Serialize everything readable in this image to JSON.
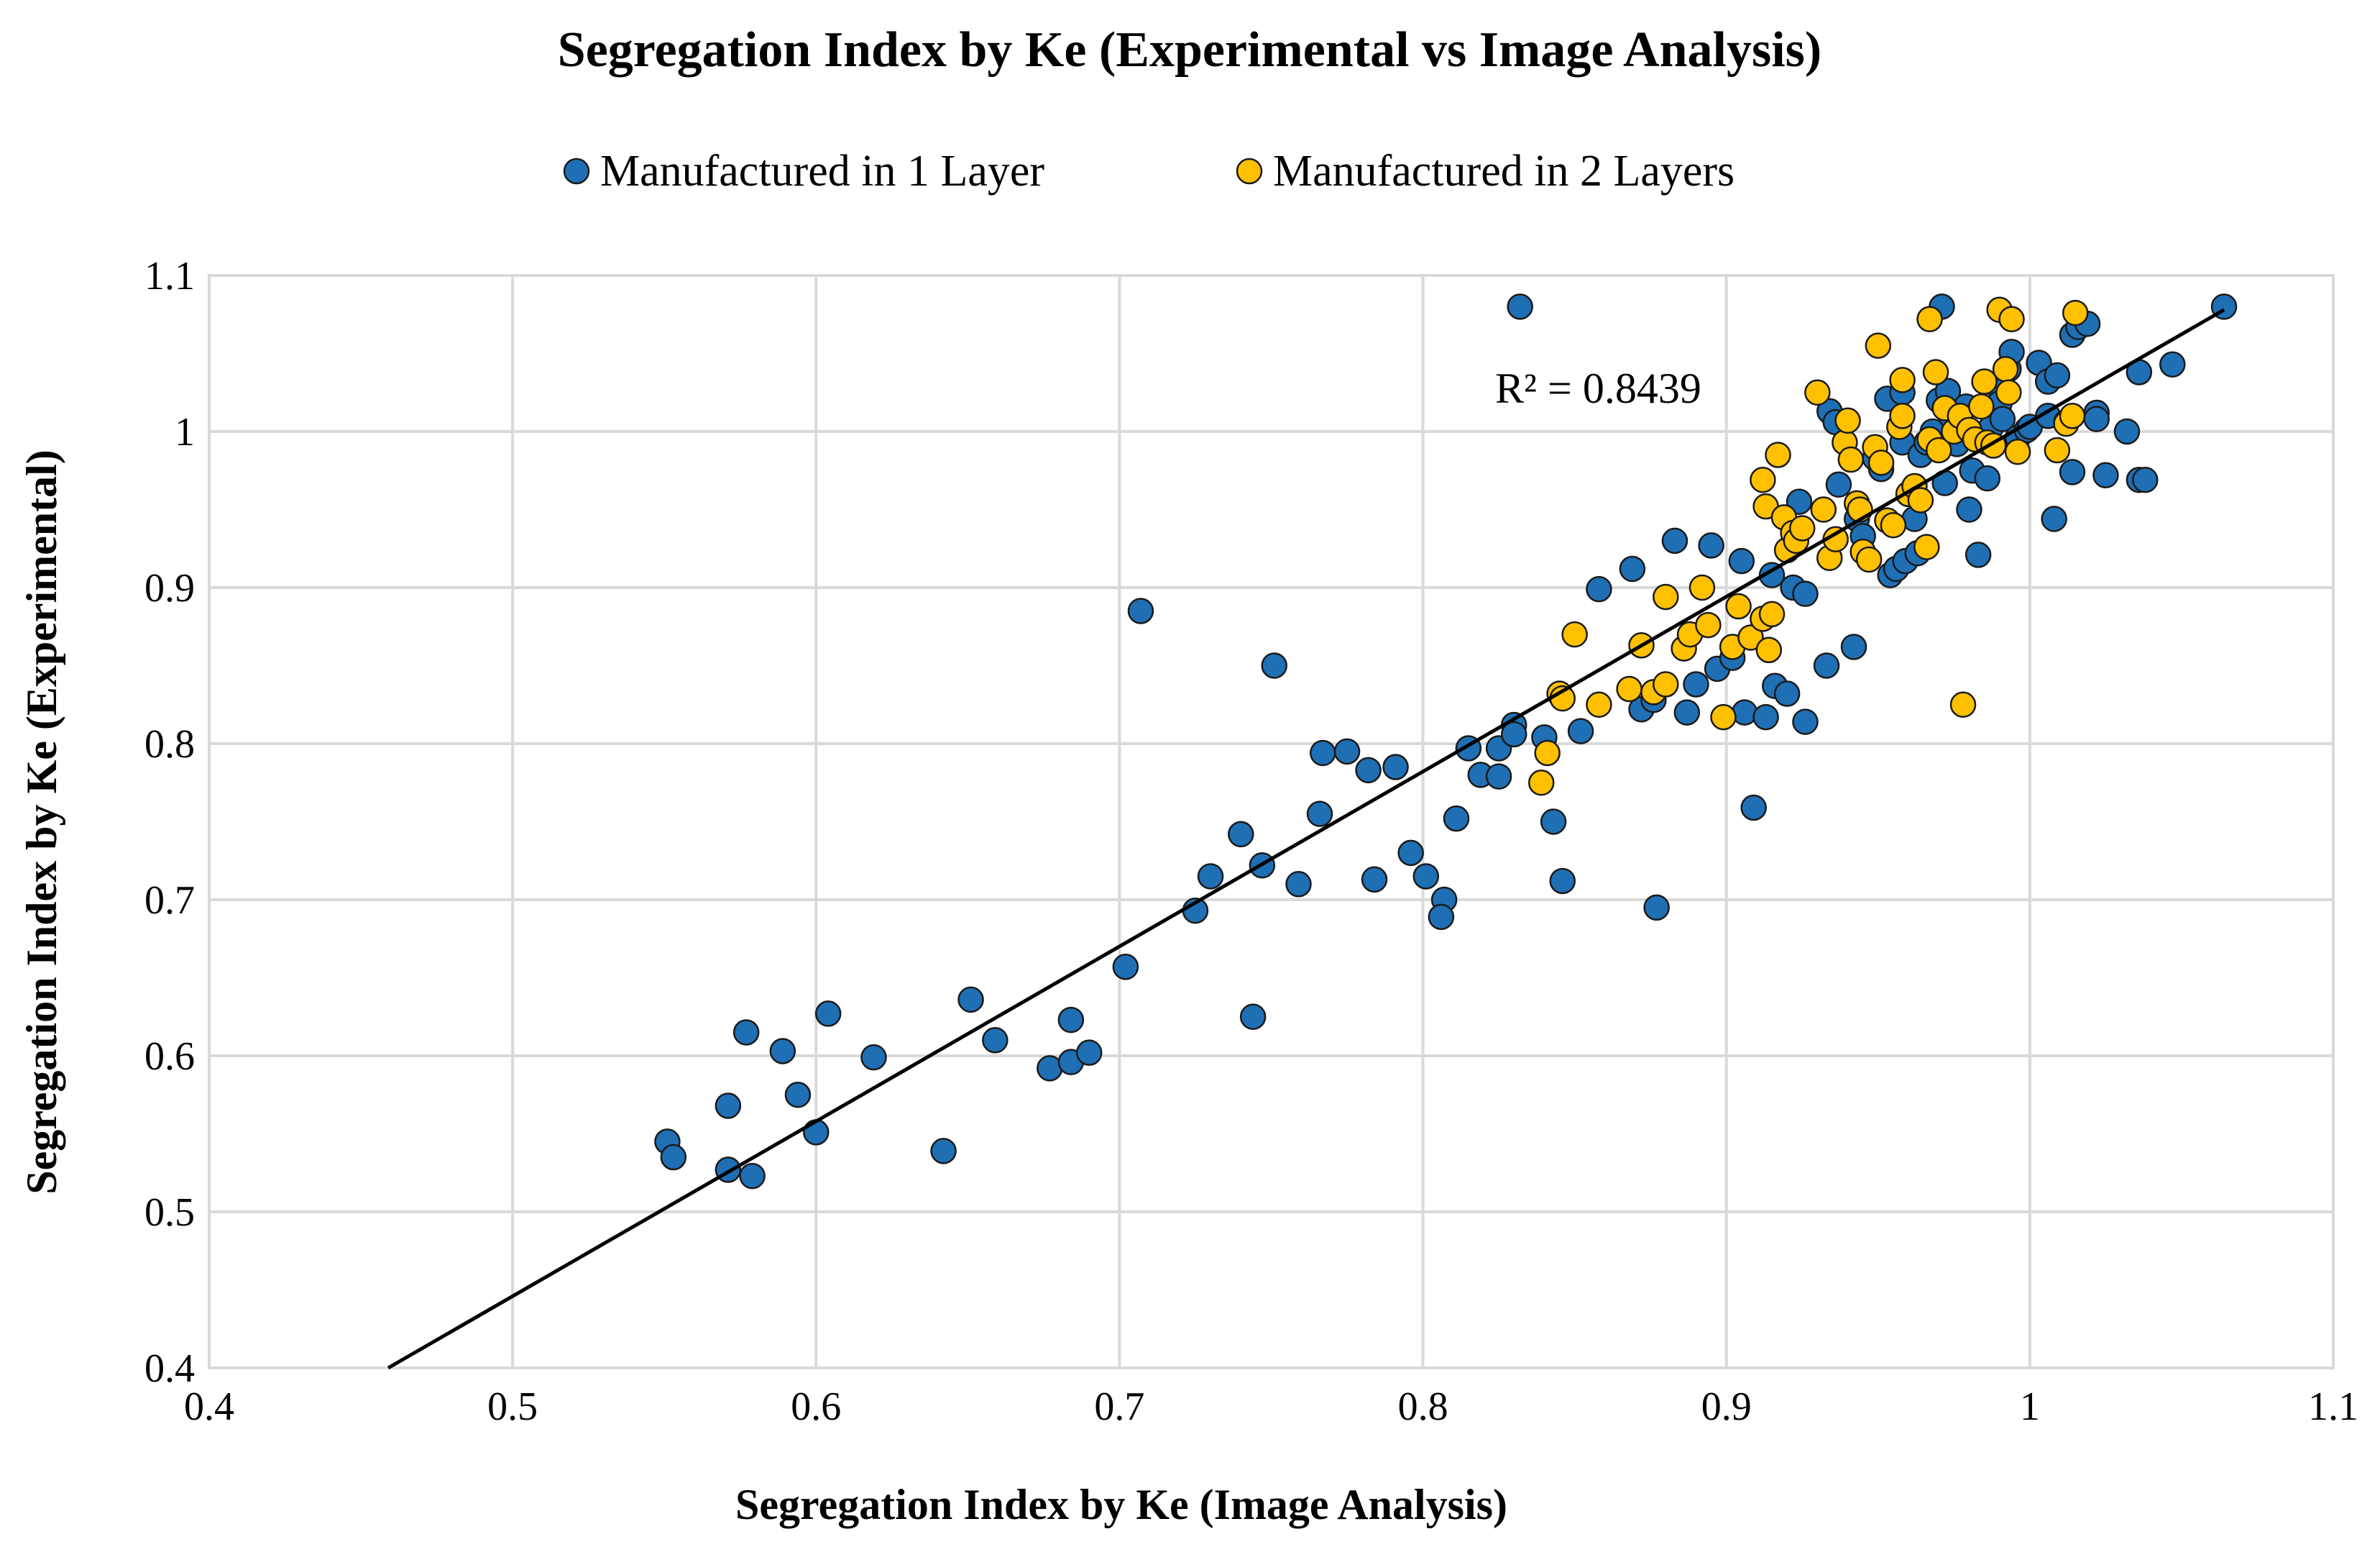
{
  "chart_data": {
    "type": "scatter",
    "title": "Segregation Index by Ke (Experimental vs Image Analysis)",
    "xlabel": "Segregation Index  by Ke (Image Analysis)",
    "ylabel": "Segregation Index  by Ke (Experimental)",
    "xlim": [
      0.4,
      1.1
    ],
    "ylim": [
      0.4,
      1.1
    ],
    "xticks": [
      0.4,
      0.5,
      0.6,
      0.7,
      0.8,
      0.9,
      1,
      1.1
    ],
    "yticks": [
      0.4,
      0.5,
      0.6,
      0.7,
      0.8,
      0.9,
      1,
      1.1
    ],
    "xtick_labels": [
      "0.4",
      "0.5",
      "0.6",
      "0.7",
      "0.8",
      "0.9",
      "1",
      "1.1"
    ],
    "ytick_labels": [
      "0.4",
      "0.5",
      "0.6",
      "0.7",
      "0.8",
      "0.9",
      "1",
      "1.1"
    ],
    "grid": true,
    "legend_position": "top-center",
    "annotation": "R² = 0.8439",
    "trendline": {
      "x0": 0.459,
      "y0": 0.4,
      "x1": 1.064,
      "y1": 1.078
    },
    "series": [
      {
        "name": "Manufactured in 1 Layer",
        "color": "#1f6fb5",
        "points": [
          [
            0.551,
            0.545
          ],
          [
            0.553,
            0.535
          ],
          [
            0.571,
            0.568
          ],
          [
            0.571,
            0.527
          ],
          [
            0.577,
            0.615
          ],
          [
            0.579,
            0.523
          ],
          [
            0.589,
            0.603
          ],
          [
            0.594,
            0.575
          ],
          [
            0.6,
            0.551
          ],
          [
            0.604,
            0.627
          ],
          [
            0.619,
            0.599
          ],
          [
            0.642,
            0.539
          ],
          [
            0.651,
            0.636
          ],
          [
            0.659,
            0.61
          ],
          [
            0.677,
            0.592
          ],
          [
            0.684,
            0.623
          ],
          [
            0.684,
            0.596
          ],
          [
            0.69,
            0.602
          ],
          [
            0.702,
            0.657
          ],
          [
            0.707,
            0.885
          ],
          [
            0.725,
            0.693
          ],
          [
            0.73,
            0.715
          ],
          [
            0.74,
            0.742
          ],
          [
            0.744,
            0.625
          ],
          [
            0.747,
            0.722
          ],
          [
            0.751,
            0.85
          ],
          [
            0.759,
            0.71
          ],
          [
            0.766,
            0.755
          ],
          [
            0.767,
            0.794
          ],
          [
            0.775,
            0.795
          ],
          [
            0.782,
            0.783
          ],
          [
            0.784,
            0.713
          ],
          [
            0.791,
            0.785
          ],
          [
            0.796,
            0.73
          ],
          [
            0.801,
            0.715
          ],
          [
            0.807,
            0.7
          ],
          [
            0.806,
            0.689
          ],
          [
            0.811,
            0.752
          ],
          [
            0.815,
            0.797
          ],
          [
            0.819,
            0.78
          ],
          [
            0.825,
            0.779
          ],
          [
            0.825,
            0.797
          ],
          [
            0.83,
            0.812
          ],
          [
            0.83,
            0.806
          ],
          [
            0.832,
            1.08
          ],
          [
            0.84,
            0.804
          ],
          [
            0.843,
            0.75
          ],
          [
            0.846,
            0.712
          ],
          [
            0.852,
            0.808
          ],
          [
            0.858,
            0.899
          ],
          [
            0.869,
            0.912
          ],
          [
            0.872,
            0.822
          ],
          [
            0.876,
            0.828
          ],
          [
            0.877,
            0.695
          ],
          [
            0.883,
            0.93
          ],
          [
            0.887,
            0.82
          ],
          [
            0.89,
            0.838
          ],
          [
            0.895,
            0.927
          ],
          [
            0.897,
            0.848
          ],
          [
            0.902,
            0.855
          ],
          [
            0.905,
            0.917
          ],
          [
            0.906,
            0.82
          ],
          [
            0.909,
            0.759
          ],
          [
            0.913,
            0.817
          ],
          [
            0.915,
            0.908
          ],
          [
            0.916,
            0.837
          ],
          [
            0.92,
            0.832
          ],
          [
            0.922,
            0.9
          ],
          [
            0.924,
            0.955
          ],
          [
            0.926,
            0.814
          ],
          [
            0.926,
            0.896
          ],
          [
            0.933,
            0.85
          ],
          [
            0.934,
            1.013
          ],
          [
            0.936,
            1.006
          ],
          [
            0.937,
            0.966
          ],
          [
            0.942,
            0.862
          ],
          [
            0.943,
            0.944
          ],
          [
            0.945,
            0.933
          ],
          [
            0.949,
            0.983
          ],
          [
            0.951,
            0.976
          ],
          [
            0.953,
            1.021
          ],
          [
            0.954,
            0.908
          ],
          [
            0.956,
            0.912
          ],
          [
            0.958,
            1.025
          ],
          [
            0.958,
            0.993
          ],
          [
            0.959,
            0.917
          ],
          [
            0.962,
            0.944
          ],
          [
            0.963,
            0.922
          ],
          [
            0.964,
            0.985
          ],
          [
            0.966,
            0.993
          ],
          [
            0.968,
            1.0
          ],
          [
            0.97,
            1.02
          ],
          [
            0.971,
            1.08
          ],
          [
            0.972,
            0.967
          ],
          [
            0.973,
            1.026
          ],
          [
            0.974,
            1.01
          ],
          [
            0.976,
            0.992
          ],
          [
            0.977,
            1.003
          ],
          [
            0.979,
            1.016
          ],
          [
            0.98,
            0.95
          ],
          [
            0.981,
            0.975
          ],
          [
            0.983,
            0.921
          ],
          [
            0.985,
            0.998
          ],
          [
            0.986,
            0.97
          ],
          [
            0.987,
            1.002
          ],
          [
            0.989,
            1.03
          ],
          [
            0.99,
            1.018
          ],
          [
            0.991,
            1.008
          ],
          [
            0.993,
            1.04
          ],
          [
            0.994,
            1.051
          ],
          [
            0.996,
            0.996
          ],
          [
            0.999,
            1.001
          ],
          [
            1.0,
            1.003
          ],
          [
            1.003,
            1.044
          ],
          [
            1.006,
            1.032
          ],
          [
            1.006,
            1.01
          ],
          [
            1.008,
            0.944
          ],
          [
            1.009,
            1.036
          ],
          [
            1.012,
            1.006
          ],
          [
            1.014,
            0.974
          ],
          [
            1.014,
            1.062
          ],
          [
            1.016,
            1.067
          ],
          [
            1.019,
            1.069
          ],
          [
            1.022,
            1.012
          ],
          [
            1.022,
            1.008
          ],
          [
            1.025,
            0.972
          ],
          [
            1.032,
            1.0
          ],
          [
            1.036,
            1.038
          ],
          [
            1.036,
            0.969
          ],
          [
            1.038,
            0.969
          ],
          [
            1.047,
            1.043
          ],
          [
            1.064,
            1.08
          ]
        ]
      },
      {
        "name": "Manufactured in 2 Layers",
        "color": "#ffc000",
        "points": [
          [
            0.839,
            0.775
          ],
          [
            0.841,
            0.794
          ],
          [
            0.845,
            0.832
          ],
          [
            0.846,
            0.829
          ],
          [
            0.85,
            0.87
          ],
          [
            0.858,
            0.825
          ],
          [
            0.868,
            0.835
          ],
          [
            0.872,
            0.863
          ],
          [
            0.876,
            0.833
          ],
          [
            0.88,
            0.894
          ],
          [
            0.88,
            0.838
          ],
          [
            0.886,
            0.861
          ],
          [
            0.888,
            0.87
          ],
          [
            0.892,
            0.9
          ],
          [
            0.894,
            0.876
          ],
          [
            0.899,
            0.817
          ],
          [
            0.902,
            0.862
          ],
          [
            0.904,
            0.888
          ],
          [
            0.908,
            0.868
          ],
          [
            0.912,
            0.969
          ],
          [
            0.912,
            0.88
          ],
          [
            0.913,
            0.952
          ],
          [
            0.914,
            0.86
          ],
          [
            0.915,
            0.883
          ],
          [
            0.917,
            0.985
          ],
          [
            0.919,
            0.945
          ],
          [
            0.92,
            0.924
          ],
          [
            0.922,
            0.935
          ],
          [
            0.923,
            0.93
          ],
          [
            0.925,
            0.938
          ],
          [
            0.93,
            1.025
          ],
          [
            0.932,
            0.95
          ],
          [
            0.934,
            0.919
          ],
          [
            0.936,
            0.931
          ],
          [
            0.939,
            0.993
          ],
          [
            0.94,
            1.007
          ],
          [
            0.941,
            0.982
          ],
          [
            0.943,
            0.954
          ],
          [
            0.944,
            0.95
          ],
          [
            0.945,
            0.923
          ],
          [
            0.947,
            0.918
          ],
          [
            0.949,
            0.99
          ],
          [
            0.95,
            1.055
          ],
          [
            0.951,
            0.98
          ],
          [
            0.953,
            0.943
          ],
          [
            0.955,
            0.94
          ],
          [
            0.957,
            1.003
          ],
          [
            0.958,
            1.033
          ],
          [
            0.958,
            1.01
          ],
          [
            0.96,
            0.96
          ],
          [
            0.962,
            0.965
          ],
          [
            0.964,
            0.956
          ],
          [
            0.966,
            0.926
          ],
          [
            0.967,
            1.072
          ],
          [
            0.967,
            0.995
          ],
          [
            0.969,
            1.038
          ],
          [
            0.97,
            0.988
          ],
          [
            0.972,
            1.015
          ],
          [
            0.975,
            1.0
          ],
          [
            0.977,
            1.01
          ],
          [
            0.978,
            0.825
          ],
          [
            0.98,
            1.001
          ],
          [
            0.982,
            0.995
          ],
          [
            0.984,
            1.016
          ],
          [
            0.985,
            1.032
          ],
          [
            0.986,
            0.993
          ],
          [
            0.988,
            0.991
          ],
          [
            0.99,
            1.078
          ],
          [
            0.992,
            1.04
          ],
          [
            0.993,
            1.025
          ],
          [
            0.994,
            1.072
          ],
          [
            0.996,
            0.987
          ],
          [
            1.009,
            0.988
          ],
          [
            1.012,
            1.005
          ],
          [
            1.014,
            1.01
          ],
          [
            1.015,
            1.076
          ]
        ]
      }
    ]
  }
}
